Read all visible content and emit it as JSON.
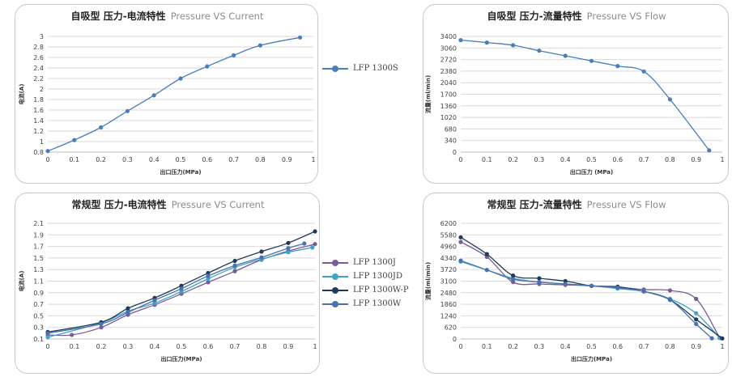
{
  "chart_data": [
    {
      "type": "line",
      "title_cn": "自吸型 压力-电流特性",
      "title_en": "Pressure VS Current",
      "xlabel": "出口压力(MPa)",
      "ylabel": "电流(A)",
      "xlim": [
        0,
        1
      ],
      "ylim": [
        0.8,
        3.0
      ],
      "xticks": [
        0,
        0.1,
        0.2,
        0.3,
        0.4,
        0.5,
        0.6,
        0.7,
        0.8,
        0.9,
        1
      ],
      "yticks": [
        0.8,
        1,
        1.2,
        1.4,
        1.6,
        1.8,
        2,
        2.2,
        2.4,
        2.6,
        2.8,
        3
      ],
      "grid": "horizontal",
      "legend_position": "right",
      "series": [
        {
          "name": "LFP 1300S",
          "color": "#4a7ebb",
          "x": [
            0,
            0.1,
            0.2,
            0.3,
            0.4,
            0.5,
            0.6,
            0.7,
            0.8,
            0.95
          ],
          "y": [
            0.82,
            1.03,
            1.27,
            1.58,
            1.88,
            2.2,
            2.43,
            2.64,
            2.83,
            2.98
          ]
        }
      ]
    },
    {
      "type": "line",
      "title_cn": "自吸型 压力-流量特性",
      "title_en": "Pressure VS Flow",
      "xlabel": "出口压力 (MPa)",
      "ylabel": "流量(ml/min)",
      "xlim": [
        0,
        1
      ],
      "ylim": [
        0,
        3400
      ],
      "xticks": [
        0,
        0.1,
        0.2,
        0.3,
        0.4,
        0.5,
        0.6,
        0.7,
        0.8,
        0.9,
        1
      ],
      "yticks": [
        0,
        340,
        680,
        1020,
        1360,
        1700,
        2040,
        2380,
        2720,
        3060,
        3400
      ],
      "grid": "horizontal",
      "series": [
        {
          "name": "LFP 1300S",
          "color": "#4a7ebb",
          "x": [
            0,
            0.1,
            0.2,
            0.3,
            0.4,
            0.5,
            0.6,
            0.7,
            0.8,
            0.95
          ],
          "y": [
            3290,
            3220,
            3140,
            2980,
            2830,
            2680,
            2530,
            2370,
            1550,
            50
          ]
        }
      ]
    },
    {
      "type": "line",
      "title_cn": "常规型 压力-电流特性",
      "title_en": "Pressure VS Current",
      "xlabel": "出口压力(MPa)",
      "ylabel": "电流(A)",
      "xlim": [
        0,
        1
      ],
      "ylim": [
        0.1,
        2.1
      ],
      "xticks": [
        0,
        0.1,
        0.2,
        0.3,
        0.4,
        0.5,
        0.6,
        0.7,
        0.8,
        0.9,
        1
      ],
      "yticks": [
        0.1,
        0.3,
        0.5,
        0.7,
        0.9,
        1.1,
        1.3,
        1.5,
        1.7,
        1.9,
        2.1
      ],
      "grid": "horizontal",
      "legend_position": "right",
      "series": [
        {
          "name": "LFP 1300J",
          "color": "#7b5a96",
          "x": [
            0,
            0.09,
            0.2,
            0.3,
            0.4,
            0.5,
            0.6,
            0.7,
            0.8,
            0.9,
            1
          ],
          "y": [
            0.17,
            0.17,
            0.3,
            0.52,
            0.69,
            0.88,
            1.08,
            1.27,
            1.47,
            1.62,
            1.74
          ]
        },
        {
          "name": "LFP 1300JD",
          "color": "#3ea3c4",
          "x": [
            0,
            0.2,
            0.3,
            0.4,
            0.5,
            0.6,
            0.7,
            0.8,
            0.9,
            0.99
          ],
          "y": [
            0.13,
            0.38,
            0.58,
            0.72,
            0.92,
            1.14,
            1.34,
            1.48,
            1.6,
            1.68
          ]
        },
        {
          "name": "LFP 1300W-P",
          "color": "#1f3b59",
          "x": [
            0,
            0.2,
            0.3,
            0.4,
            0.5,
            0.6,
            0.7,
            0.8,
            0.9,
            1
          ],
          "y": [
            0.22,
            0.39,
            0.63,
            0.81,
            1.02,
            1.24,
            1.45,
            1.61,
            1.76,
            1.96
          ]
        },
        {
          "name": "LFP 1300W",
          "color": "#4a70b0",
          "x": [
            0,
            0.2,
            0.3,
            0.4,
            0.5,
            0.6,
            0.7,
            0.8,
            0.9,
            0.96
          ],
          "y": [
            0.2,
            0.36,
            0.56,
            0.77,
            0.97,
            1.19,
            1.37,
            1.51,
            1.67,
            1.75
          ]
        }
      ]
    },
    {
      "type": "line",
      "title_cn": "常规型 压力-流量特性",
      "title_en": "Pressure VS Flow",
      "xlabel": "出口压力(MPa)",
      "ylabel": "流量(ml/min)",
      "xlim": [
        0,
        1
      ],
      "ylim": [
        0,
        6200
      ],
      "xticks": [
        0,
        0.1,
        0.2,
        0.3,
        0.4,
        0.5,
        0.6,
        0.7,
        0.8,
        0.9,
        1
      ],
      "yticks": [
        0,
        620,
        1240,
        1860,
        2480,
        3100,
        3720,
        4340,
        4960,
        5580,
        6200
      ],
      "grid": "horizontal",
      "series": [
        {
          "name": "LFP 1300J",
          "color": "#7b5a96",
          "x": [
            0,
            0.1,
            0.2,
            0.3,
            0.4,
            0.5,
            0.6,
            0.7,
            0.8,
            0.9,
            0.99
          ],
          "y": [
            5200,
            4400,
            3050,
            2950,
            2900,
            2850,
            2780,
            2650,
            2600,
            2150,
            60
          ]
        },
        {
          "name": "LFP 1300JD",
          "color": "#3ea3c4",
          "x": [
            0,
            0.1,
            0.2,
            0.3,
            0.4,
            0.5,
            0.6,
            0.7,
            0.8,
            0.9,
            0.99
          ],
          "y": [
            4150,
            3700,
            3250,
            3050,
            2950,
            2850,
            2700,
            2550,
            2150,
            1380,
            50
          ]
        },
        {
          "name": "LFP 1300W-P",
          "color": "#1f3b59",
          "x": [
            0,
            0.1,
            0.2,
            0.3,
            0.4,
            0.5,
            0.6,
            0.7,
            0.8,
            0.9,
            1
          ],
          "y": [
            5450,
            4550,
            3400,
            3250,
            3100,
            2850,
            2800,
            2550,
            2100,
            1050,
            30
          ]
        },
        {
          "name": "LFP 1300W",
          "color": "#4a70b0",
          "x": [
            0,
            0.1,
            0.2,
            0.3,
            0.4,
            0.5,
            0.6,
            0.7,
            0.8,
            0.9,
            0.96
          ],
          "y": [
            4200,
            3700,
            3200,
            3050,
            2950,
            2850,
            2750,
            2550,
            2100,
            800,
            40
          ]
        }
      ]
    }
  ]
}
